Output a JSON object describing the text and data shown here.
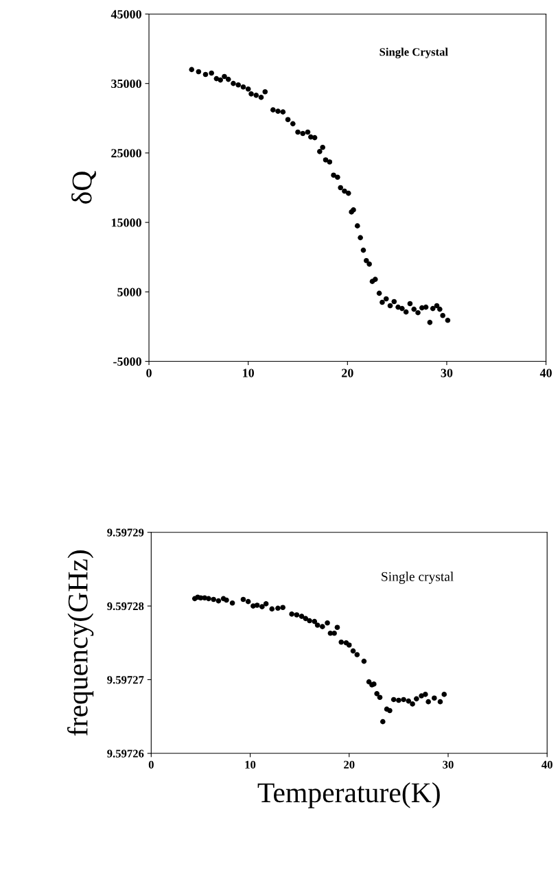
{
  "chart_data": [
    {
      "type": "scatter",
      "ylabel": "δQ",
      "annotations": [
        "Single Crystal"
      ],
      "marker": "circle",
      "grid": false,
      "legend": false,
      "xlim": [
        0,
        40
      ],
      "xticks": [
        0,
        10,
        20,
        30,
        40
      ],
      "ylim": [
        -5000,
        45000
      ],
      "yticks": [
        -5000,
        5000,
        15000,
        25000,
        35000,
        45000
      ],
      "series": [
        {
          "color": "#000000",
          "x": [
            4.3,
            5,
            5.7,
            6.3,
            6.8,
            7.2,
            7.6,
            8,
            8.5,
            9,
            9.5,
            10,
            10.3,
            10.8,
            11.3,
            11.7,
            12.5,
            13,
            13.5,
            14,
            14.5,
            15,
            15.5,
            16,
            16.3,
            16.7,
            17.2,
            17.5,
            17.8,
            18.2,
            18.6,
            19,
            19.3,
            19.7,
            20.1,
            20.4,
            20.6,
            21,
            21.3,
            21.6,
            21.9,
            22.2,
            22.5,
            22.8,
            23.2,
            23.5,
            23.9,
            24.3,
            24.7,
            25.1,
            25.5,
            25.9,
            26.3,
            26.7,
            27.1,
            27.5,
            27.9,
            28.3,
            28.6,
            29,
            29.3,
            29.6,
            30.1
          ],
          "values": [
            37000,
            36700,
            36300,
            36500,
            35700,
            35500,
            36000,
            35600,
            35000,
            34800,
            34500,
            34200,
            33500,
            33300,
            33000,
            33800,
            31200,
            31000,
            30900,
            29800,
            29200,
            28000,
            27800,
            28000,
            27300,
            27200,
            25200,
            25800,
            24000,
            23700,
            21800,
            21500,
            20000,
            19500,
            19200,
            16500,
            16800,
            14500,
            12800,
            11000,
            9500,
            9000,
            6500,
            6800,
            4800,
            3500,
            4000,
            3000,
            3600,
            2800,
            2600,
            2100,
            3300,
            2500,
            2000,
            2700,
            2800,
            600,
            2600,
            3000,
            2500,
            1600,
            900
          ]
        }
      ]
    },
    {
      "type": "scatter",
      "xlabel": "Temperature(K)",
      "ylabel": "frequency(GHz)",
      "annotations": [
        "Single crystal"
      ],
      "marker": "circle",
      "grid": false,
      "legend": false,
      "xlim": [
        0,
        40
      ],
      "xticks": [
        0,
        10,
        20,
        30,
        40
      ],
      "ylim": [
        9.59726,
        9.59729
      ],
      "yticks": [
        9.59726,
        9.59727,
        9.59728,
        9.59729
      ],
      "series": [
        {
          "color": "#000000",
          "x": [
            4.4,
            4.7,
            5.0,
            5.4,
            5.8,
            6.3,
            6.8,
            7.3,
            7.6,
            8.2,
            9.3,
            9.8,
            10.3,
            10.7,
            11.2,
            11.6,
            12.2,
            12.8,
            13.3,
            14.2,
            14.7,
            15.2,
            15.6,
            16,
            16.5,
            16.8,
            17.3,
            17.8,
            18.1,
            18.5,
            18.8,
            19.2,
            19.7,
            20,
            20.4,
            20.8,
            21.5,
            22.0,
            22.3,
            22.5,
            22.8,
            23.1,
            23.4,
            23.8,
            24.1,
            24.5,
            25,
            25.5,
            26,
            26.4,
            26.8,
            27.3,
            27.7,
            28.0,
            28.6,
            29.2,
            29.6
          ],
          "values": [
            9.597281,
            9.5972812,
            9.5972811,
            9.5972811,
            9.597281,
            9.5972809,
            9.5972807,
            9.597281,
            9.5972808,
            9.5972804,
            9.5972809,
            9.5972806,
            9.59728,
            9.5972801,
            9.5972799,
            9.5972803,
            9.5972796,
            9.5972797,
            9.5972798,
            9.5972789,
            9.5972788,
            9.5972786,
            9.5972783,
            9.597278,
            9.5972779,
            9.5972774,
            9.5972772,
            9.5972777,
            9.5972763,
            9.5972763,
            9.5972771,
            9.5972751,
            9.597275,
            9.5972747,
            9.5972739,
            9.5972734,
            9.5972725,
            9.5972697,
            9.5972693,
            9.5972694,
            9.5972681,
            9.5972676,
            9.5972643,
            9.597266,
            9.5972658,
            9.5972673,
            9.5972672,
            9.5972673,
            9.5972671,
            9.5972667,
            9.5972674,
            9.5972678,
            9.597268,
            9.597267,
            9.5972675,
            9.597267,
            9.597268
          ]
        }
      ]
    }
  ]
}
